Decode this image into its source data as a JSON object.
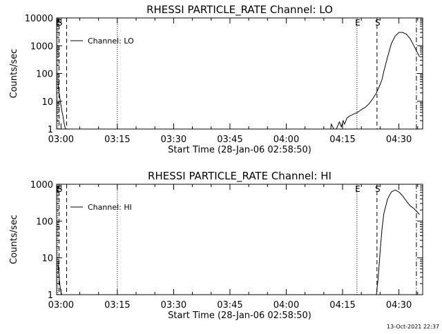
{
  "footer": {
    "timestamp": "13-Oct-2021 22:37"
  },
  "chart_data": [
    {
      "type": "line",
      "title": "RHESSI PARTICLE_RATE Channel: LO",
      "xlabel": "Start Time (28-Jan-06 02:58:50)",
      "ylabel": "Counts/sec",
      "yscale": "log",
      "xlim": [
        "02:58:50",
        "04:36:20"
      ],
      "ylim": [
        1,
        10000
      ],
      "x_ticks": [
        "03:00",
        "03:15",
        "03:30",
        "03:45",
        "04:00",
        "04:15",
        "04:30"
      ],
      "y_ticks": [
        {
          "value": 1,
          "label": "1"
        },
        {
          "value": 10,
          "label": "10"
        },
        {
          "value": 100,
          "label": "100"
        },
        {
          "value": 1000,
          "label": "1000"
        },
        {
          "value": 10000,
          "label": "10000"
        }
      ],
      "legend": {
        "label": "Channel: LO",
        "position": "top-left"
      },
      "series": [
        {
          "x": [
            "02:59:10",
            "02:59:30",
            "02:59:50",
            "03:00:10",
            "03:00:30",
            "03:00:50",
            "03:01:10",
            "04:11:50",
            "04:12:00",
            "04:12:40",
            "04:13:20",
            "04:14:10",
            "04:14:40",
            "04:15:10",
            "04:15:30",
            "04:16:10",
            "04:17:00",
            "04:18:00",
            "04:19:00",
            "04:20:00",
            "04:21:00",
            "04:22:00",
            "04:23:00",
            "04:24:00",
            "04:25:00",
            "04:25:30",
            "04:26:00",
            "04:27:00",
            "04:28:00",
            "04:29:00",
            "04:30:00",
            "04:31:00",
            "04:32:00",
            "04:33:00",
            "04:34:00",
            "04:35:30"
          ],
          "y": [
            50,
            20,
            10,
            5,
            3,
            1.6,
            1,
            1,
            1.5,
            1,
            1,
            1.8,
            1.2,
            2,
            1.5,
            2.5,
            3,
            3.5,
            4,
            5,
            6,
            8,
            12,
            20,
            40,
            60,
            120,
            400,
            1200,
            2200,
            3000,
            3000,
            2600,
            1800,
            1000,
            400
          ]
        }
      ],
      "markers": [
        {
          "label": "E",
          "x": "02:59:10",
          "style": "dotted"
        },
        {
          "label": "S",
          "x": "02:59:30",
          "style": "dashed"
        },
        {
          "label": "",
          "x": "03:01:30",
          "style": "dashed"
        },
        {
          "label": "",
          "x": "03:15:00",
          "style": "dotted"
        },
        {
          "label": "E",
          "x": "04:18:50",
          "style": "dotted"
        },
        {
          "label": "S",
          "x": "04:24:10",
          "style": "dashed"
        },
        {
          "label": "",
          "x": "04:34:40",
          "style": "dashdot"
        }
      ]
    },
    {
      "type": "line",
      "title": "RHESSI PARTICLE_RATE Channel: HI",
      "xlabel": "Start Time (28-Jan-06 02:58:50)",
      "ylabel": "Counts/sec",
      "yscale": "log",
      "xlim": [
        "02:58:50",
        "04:36:20"
      ],
      "ylim": [
        1,
        1000
      ],
      "x_ticks": [
        "03:00",
        "03:15",
        "03:30",
        "03:45",
        "04:00",
        "04:15",
        "04:30"
      ],
      "y_ticks": [
        {
          "value": 1,
          "label": "1"
        },
        {
          "value": 10,
          "label": "10"
        },
        {
          "value": 100,
          "label": "100"
        },
        {
          "value": 1000,
          "label": "1000"
        }
      ],
      "legend": {
        "label": "Channel: HI",
        "position": "top-left"
      },
      "series": [
        {
          "x": [
            "02:59:10",
            "02:59:25",
            "02:59:40",
            "02:59:55",
            "03:00:10",
            "04:24:00",
            "04:24:30",
            "04:25:00",
            "04:25:30",
            "04:26:00",
            "04:27:00",
            "04:28:00",
            "04:29:00",
            "04:30:00",
            "04:31:00",
            "04:32:00",
            "04:33:00",
            "04:34:00",
            "04:35:30"
          ],
          "y": [
            8,
            4,
            2,
            1.3,
            1,
            1,
            3,
            15,
            60,
            160,
            400,
            620,
            700,
            620,
            480,
            350,
            260,
            220,
            150
          ]
        }
      ],
      "markers": [
        {
          "label": "E",
          "x": "02:59:10",
          "style": "dotted"
        },
        {
          "label": "S",
          "x": "02:59:30",
          "style": "dashed"
        },
        {
          "label": "",
          "x": "03:01:30",
          "style": "dashed"
        },
        {
          "label": "",
          "x": "03:15:00",
          "style": "dotted"
        },
        {
          "label": "E",
          "x": "04:18:50",
          "style": "dotted"
        },
        {
          "label": "S",
          "x": "04:24:10",
          "style": "dashed"
        },
        {
          "label": "",
          "x": "04:34:40",
          "style": "dashdot"
        }
      ]
    }
  ]
}
